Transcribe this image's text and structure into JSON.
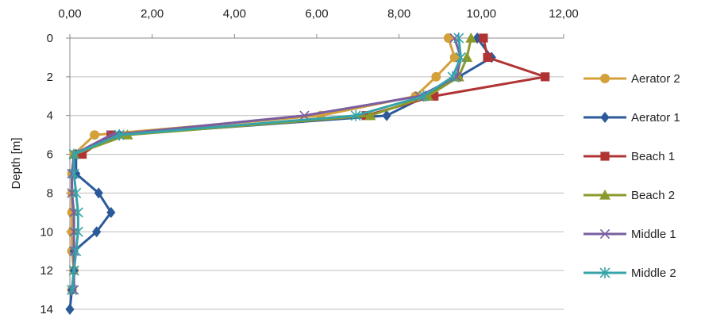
{
  "chart_data": {
    "type": "line",
    "title": "",
    "xlabel": "",
    "ylabel": "Depth [m]",
    "x_axis_position": "top",
    "y_axis_inverted": true,
    "xlim": [
      0,
      12
    ],
    "ylim": [
      0,
      14
    ],
    "xticks": [
      "0,00",
      "2,00",
      "4,00",
      "6,00",
      "8,00",
      "10,00",
      "12,00"
    ],
    "yticks": [
      "0",
      "2",
      "4",
      "6",
      "8",
      "10",
      "12",
      "14"
    ],
    "grid": "horizontal",
    "legend_position": "right",
    "depths": [
      0,
      1,
      2,
      3,
      4,
      5,
      6,
      7,
      8,
      9,
      10,
      11,
      12,
      13,
      14
    ],
    "series": [
      {
        "name": "Aerator 2",
        "color": "#d4a03a",
        "marker": "circle",
        "values": [
          9.2,
          9.35,
          8.9,
          8.4,
          6.1,
          0.6,
          0.1,
          0.05,
          0.05,
          0.05,
          0.05,
          0.05,
          0.1,
          0.05,
          null
        ]
      },
      {
        "name": "Aerator 1",
        "color": "#2b5a9a",
        "marker": "diamond",
        "values": [
          9.9,
          10.25,
          9.45,
          8.65,
          7.7,
          1.2,
          0.15,
          0.15,
          0.7,
          1.0,
          0.65,
          0.1,
          0.1,
          0.05,
          0.0
        ]
      },
      {
        "name": "Beach 1",
        "color": "#b03434",
        "marker": "square",
        "values": [
          10.05,
          10.15,
          11.55,
          8.85,
          7.2,
          1.0,
          0.3,
          null,
          null,
          null,
          null,
          null,
          null,
          null,
          null
        ]
      },
      {
        "name": "Beach 2",
        "color": "#8c9a2c",
        "marker": "triangle",
        "values": [
          9.75,
          9.65,
          9.45,
          8.7,
          7.3,
          1.4,
          0.1,
          null,
          null,
          null,
          null,
          null,
          null,
          null,
          null
        ]
      },
      {
        "name": "Middle 1",
        "color": "#7a5ea0",
        "marker": "x",
        "values": [
          9.35,
          9.5,
          9.4,
          8.5,
          5.7,
          1.0,
          0.1,
          0.05,
          0.05,
          0.1,
          0.1,
          0.1,
          0.1,
          0.1,
          null
        ]
      },
      {
        "name": "Middle 2",
        "color": "#35a3a8",
        "marker": "star",
        "values": [
          9.45,
          9.5,
          9.3,
          8.6,
          6.95,
          1.2,
          0.1,
          0.1,
          0.15,
          0.2,
          0.2,
          0.15,
          0.1,
          0.05,
          null
        ]
      }
    ]
  }
}
